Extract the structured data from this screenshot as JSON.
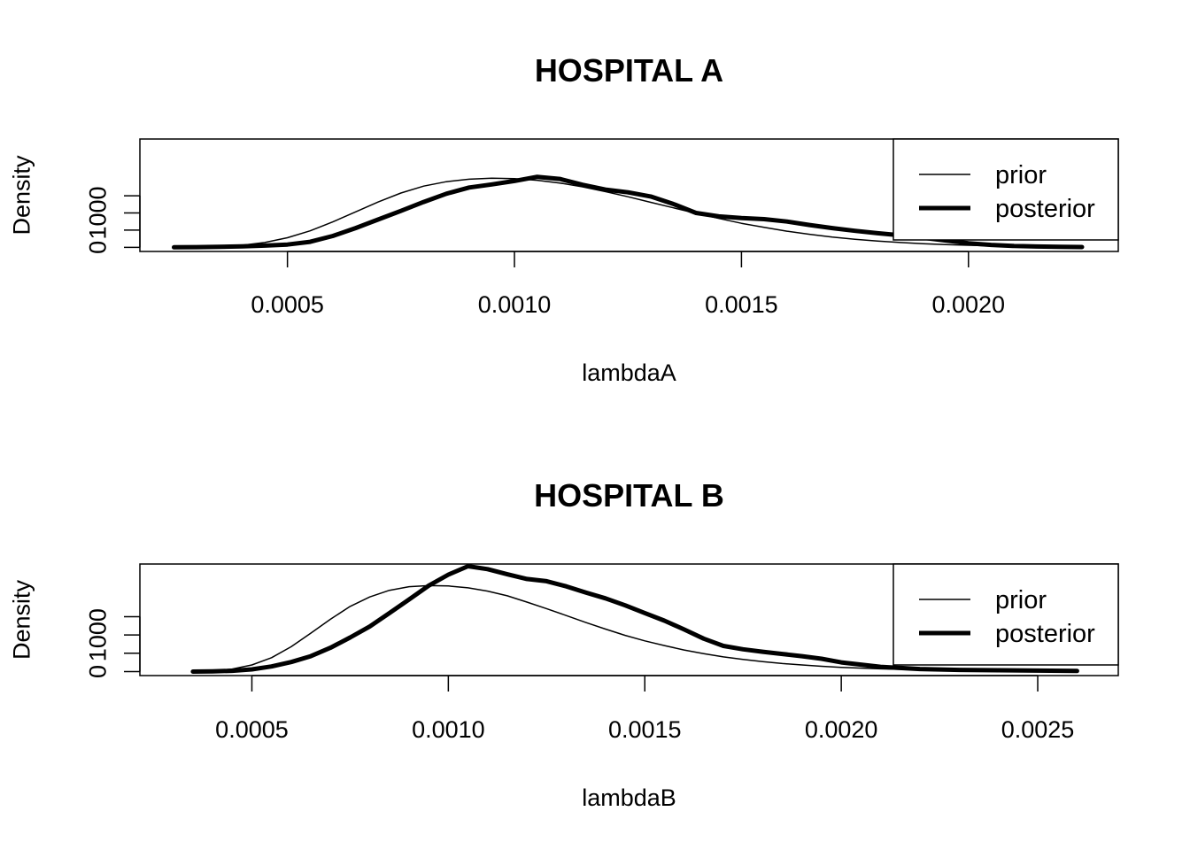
{
  "chart_data": [
    {
      "type": "line",
      "title": "HOSPITAL A",
      "xlabel": "lambdaA",
      "ylabel": "Density",
      "xlim": [
        0.000175,
        0.00233
      ],
      "ylim": [
        -120,
        3150
      ],
      "xticks": [
        0.0005,
        0.001,
        0.0015,
        0.002
      ],
      "xtick_labels": [
        "0.0005",
        "0.0010",
        "0.0015",
        "0.0020"
      ],
      "yticks": [
        0,
        500,
        1000,
        1500
      ],
      "ytick_labels": [
        "0",
        "",
        "1000",
        ""
      ],
      "legend_position": "top-right",
      "grid": false,
      "series": [
        {
          "name": "prior",
          "x": [
            0.00025,
            0.0003,
            0.00035,
            0.0004,
            0.00045,
            0.0005,
            0.00055,
            0.0006,
            0.00065,
            0.0007,
            0.00075,
            0.0008,
            0.00085,
            0.0009,
            0.00095,
            0.001,
            0.00105,
            0.0011,
            0.00115,
            0.0012,
            0.00125,
            0.0013,
            0.00135,
            0.0014,
            0.00145,
            0.0015,
            0.00155,
            0.0016,
            0.00165,
            0.0017,
            0.00175,
            0.0018,
            0.00185,
            0.0019,
            0.00195,
            0.002,
            0.00205,
            0.0021,
            0.00215,
            0.0022,
            0.00225
          ],
          "y": [
            1,
            5,
            20,
            60,
            140,
            280,
            480,
            740,
            1030,
            1320,
            1580,
            1780,
            1910,
            1980,
            2010,
            2000,
            1950,
            1870,
            1760,
            1620,
            1470,
            1310,
            1150,
            990,
            840,
            700,
            580,
            470,
            380,
            300,
            235,
            180,
            140,
            105,
            80,
            60,
            45,
            32,
            22,
            15,
            10
          ]
        },
        {
          "name": "posterior",
          "x": [
            0.00025,
            0.0003,
            0.00035,
            0.0004,
            0.00045,
            0.0005,
            0.00055,
            0.0006,
            0.00065,
            0.0007,
            0.00075,
            0.0008,
            0.00085,
            0.0009,
            0.00095,
            0.001,
            0.00105,
            0.0011,
            0.00115,
            0.0012,
            0.00125,
            0.0013,
            0.00135,
            0.0014,
            0.00145,
            0.0015,
            0.00155,
            0.0016,
            0.00165,
            0.0017,
            0.00175,
            0.0018,
            0.00185,
            0.0019,
            0.00195,
            0.002,
            0.00205,
            0.0021,
            0.00215,
            0.0022,
            0.00225
          ],
          "y": [
            0,
            5,
            15,
            30,
            50,
            80,
            160,
            330,
            560,
            810,
            1060,
            1320,
            1560,
            1740,
            1830,
            1930,
            2050,
            1990,
            1820,
            1680,
            1600,
            1480,
            1260,
            1000,
            900,
            850,
            820,
            750,
            650,
            560,
            480,
            410,
            350,
            280,
            200,
            120,
            70,
            40,
            25,
            15,
            10
          ]
        }
      ]
    },
    {
      "type": "line",
      "title": "HOSPITAL B",
      "xlabel": "lambdaB",
      "ylabel": "Density",
      "xlim": [
        0.000215,
        0.002705
      ],
      "ylim": [
        -110,
        2940
      ],
      "xticks": [
        0.0005,
        0.001,
        0.0015,
        0.002,
        0.0025
      ],
      "xtick_labels": [
        "0.0005",
        "0.0010",
        "0.0015",
        "0.0020",
        "0.0025"
      ],
      "yticks": [
        0,
        500,
        1000,
        1500
      ],
      "ytick_labels": [
        "0",
        "",
        "1000",
        ""
      ],
      "legend_position": "top-right",
      "grid": false,
      "series": [
        {
          "name": "prior",
          "x": [
            0.00035,
            0.0004,
            0.00045,
            0.0005,
            0.00055,
            0.0006,
            0.00065,
            0.0007,
            0.00075,
            0.0008,
            0.00085,
            0.0009,
            0.00095,
            0.001,
            0.00105,
            0.0011,
            0.00115,
            0.0012,
            0.00125,
            0.0013,
            0.00135,
            0.0014,
            0.00145,
            0.0015,
            0.00155,
            0.0016,
            0.00165,
            0.0017,
            0.00175,
            0.0018,
            0.00185,
            0.0019,
            0.00195,
            0.002,
            0.0021,
            0.0022,
            0.0023,
            0.0024,
            0.0025,
            0.0026
          ],
          "y": [
            5,
            20,
            70,
            180,
            380,
            680,
            1050,
            1430,
            1780,
            2040,
            2220,
            2320,
            2350,
            2340,
            2290,
            2200,
            2070,
            1900,
            1720,
            1530,
            1340,
            1160,
            990,
            840,
            710,
            590,
            490,
            400,
            330,
            270,
            220,
            180,
            145,
            115,
            75,
            48,
            30,
            18,
            10,
            5
          ]
        },
        {
          "name": "posterior",
          "x": [
            0.00035,
            0.0004,
            0.00045,
            0.0005,
            0.00055,
            0.0006,
            0.00065,
            0.0007,
            0.00075,
            0.0008,
            0.00085,
            0.0009,
            0.00095,
            0.001,
            0.00105,
            0.0011,
            0.00115,
            0.0012,
            0.00125,
            0.0013,
            0.00135,
            0.0014,
            0.00145,
            0.0015,
            0.00155,
            0.0016,
            0.00165,
            0.0017,
            0.00175,
            0.0018,
            0.00185,
            0.0019,
            0.00195,
            0.002,
            0.0021,
            0.0022,
            0.0023,
            0.0024,
            0.0025,
            0.0026
          ],
          "y": [
            0,
            5,
            20,
            60,
            140,
            260,
            420,
            650,
            930,
            1230,
            1600,
            1970,
            2350,
            2650,
            2880,
            2800,
            2660,
            2530,
            2470,
            2330,
            2160,
            2000,
            1810,
            1600,
            1390,
            1150,
            900,
            700,
            610,
            540,
            480,
            420,
            350,
            250,
            130,
            70,
            45,
            35,
            25,
            15
          ]
        }
      ]
    }
  ]
}
